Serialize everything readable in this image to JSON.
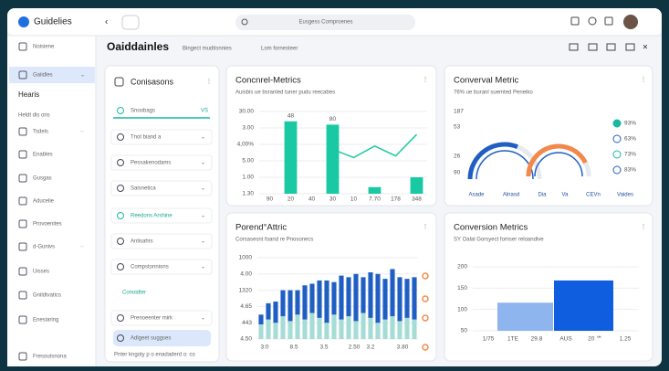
{
  "app": {
    "logo": "Guidelies",
    "search": "Eusgess Comproenes"
  },
  "header": {
    "title": "Oaiddainles",
    "tabs": [
      "Bingect mudtisnnies",
      "Lom fornesteer"
    ]
  },
  "sidebar": {
    "items": [
      "Noisiene",
      "Gaiidles",
      "Hearis",
      "Heldt dis ons",
      "Tsdels",
      "Enables",
      "Gusgas",
      "Aducelie",
      "Provoenites",
      "d-Gunivs",
      "Uisses",
      "Gnildtvatics",
      "Enesiaring",
      "Fresoutsnona"
    ]
  },
  "list_panel": {
    "title": "Conisasons",
    "items": [
      {
        "label": "Snoobags",
        "badge": "VS"
      },
      {
        "label": "Tnot biand a"
      },
      {
        "label": "Pessakenodams"
      },
      {
        "label": "Saisnetica"
      },
      {
        "label": "Reedons Arshine"
      },
      {
        "label": "Anlisahrs"
      },
      {
        "label": "Compstonnions"
      },
      {
        "label": "Conoidter"
      },
      {
        "label": "Prenoeenter mirk"
      },
      {
        "label": "Adlgeet suggses"
      }
    ],
    "footer": "Pnter kngoty p o enadaderd o: co"
  },
  "chart_data": [
    {
      "type": "bar-line",
      "title": "Concnrel-Metrics",
      "subtitle": "Auisbis ue bsranled tuner pudu reecabes",
      "categories": [
        "90",
        "20",
        "40",
        "30",
        "10",
        "7.70",
        "178",
        "348"
      ],
      "series": [
        {
          "color": "#19c9a3",
          "values": [
            null,
            4.4,
            null,
            4.2,
            null,
            0.4,
            null,
            1.0
          ]
        },
        {
          "color": "#19c9a3",
          "values": [
            null,
            null,
            null,
            2.7,
            2.2,
            2.9,
            2.3,
            3.6
          ]
        }
      ],
      "annotations": [
        "48",
        "80"
      ],
      "ylim": [
        0,
        5
      ],
      "yticks": [
        {
          "value": 5,
          "label": "30.00"
        },
        {
          "value": 4,
          "label": "3.00"
        },
        {
          "value": 3,
          "label": "4,00%"
        },
        {
          "value": 2,
          "label": "5.00"
        },
        {
          "value": 1,
          "label": "1.00"
        },
        {
          "value": 0,
          "label": "1.30"
        }
      ]
    },
    {
      "type": "gauge",
      "title": "Converval Metric",
      "subtitle": "76% ue buranl suemted Peneiko",
      "side_labels": [
        "187",
        "53",
        "26",
        "90"
      ],
      "gauges": [
        {
          "value": 62,
          "color": "#1f5fc4"
        },
        {
          "value": 85,
          "color": "#f2884a"
        }
      ],
      "legend": [
        "93%",
        "63%",
        "73%",
        "83%"
      ],
      "categories": [
        "Asade",
        "Alnasd",
        "Dia",
        "Va",
        "CEVn",
        "Vaides"
      ]
    },
    {
      "type": "stacked-bar",
      "title": "Porend°Attric",
      "subtitle": "Corsasesnt foand re Pnosonecs",
      "series": [
        {
          "color": "#a6dcd6",
          "values": [
            0.9,
            1.2,
            1.0,
            1.4,
            1.1,
            1.5,
            1.2,
            1.6,
            1.3,
            1.0,
            1.5,
            1.2,
            1.4,
            1.1,
            1.6,
            1.3,
            1.0,
            1.2,
            1.4,
            1.1,
            1.3,
            1.2
          ]
        },
        {
          "color": "#1f5fc4",
          "values": [
            0.6,
            1.0,
            1.3,
            1.6,
            1.9,
            1.5,
            2.1,
            1.8,
            2.3,
            2.6,
            2.0,
            2.7,
            2.4,
            2.9,
            2.2,
            2.8,
            3.0,
            2.5,
            2.9,
            2.7,
            2.4,
            2.6
          ]
        }
      ],
      "xlabels": [
        "3:0",
        "8.5",
        "3.5",
        "2.50",
        "3.2",
        "3.80"
      ],
      "ylim": [
        0,
        5
      ],
      "yticks": [
        {
          "value": 5,
          "label": "1000"
        },
        {
          "value": 4,
          "label": "4.00"
        },
        {
          "value": 3,
          "label": "1320"
        },
        {
          "value": 2,
          "label": "4.65"
        },
        {
          "value": 1,
          "label": "443"
        },
        {
          "value": 0,
          "label": "4.50"
        }
      ]
    },
    {
      "type": "bar",
      "title": "Conversion Metrics",
      "subtitle": "SY Oalal Gorsyect fomser reloandive",
      "values": [
        116,
        168
      ],
      "colors": [
        "#8fb5ee",
        "#0f5ee0"
      ],
      "xlabels": [
        "1/75",
        "1TE",
        "29.8",
        "AUS",
        "20 ℠",
        "1.25"
      ],
      "ylim": [
        50,
        200
      ],
      "yticks": [
        200,
        150,
        100,
        50
      ]
    }
  ]
}
